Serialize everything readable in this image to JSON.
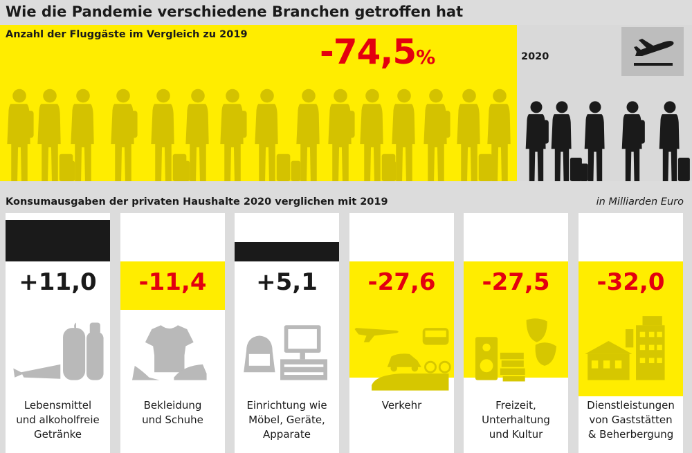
{
  "title": "Wie die Pandemie verschiedene Branchen getroffen hat",
  "passengers": {
    "subtitle": "Anzahl der Fluggäste im Vergleich zu 2019",
    "change_number": "-74,5",
    "change_unit": "%",
    "change_value": -74.5,
    "year": "2020",
    "icon": "airplane-departure-icon"
  },
  "spending": {
    "subtitle": "Konsumausgaben der privaten Haushalte 2020 verglichen mit 2019",
    "unit": "in Milliarden Euro"
  },
  "colors": {
    "yellow": "#ffed00",
    "red": "#e3000f",
    "black": "#1a1a1a",
    "grey": "#dcdcdc",
    "icon_grey": "#b9b9b9",
    "icon_on_yellow": "#d6c700"
  },
  "chart_data": {
    "type": "bar",
    "title": "Konsumausgaben der privaten Haushalte 2020 verglichen mit 2019",
    "ylabel": "in Milliarden Euro",
    "ylim": [
      -35,
      15
    ],
    "categories": [
      "Lebensmittel und alkoholfreie Getränke",
      "Bekleidung und Schuhe",
      "Einrichtung wie Möbel, Geräte, Apparate",
      "Verkehr",
      "Freizeit, Unterhaltung und Kultur",
      "Dienstleistungen von Gaststätten & Beherbergung"
    ],
    "values": [
      11.0,
      -11.4,
      5.1,
      -27.6,
      -27.5,
      -32.0
    ],
    "value_labels": [
      "+11,0",
      "-11,4",
      "+5,1",
      "-27,6",
      "-27,5",
      "-32,0"
    ],
    "label_lines": [
      [
        "Lebensmittel",
        "und alkoholfreie",
        "Getränke"
      ],
      [
        "Bekleidung",
        "und Schuhe"
      ],
      [
        "Einrichtung wie",
        "Möbel, Geräte,",
        "Apparate"
      ],
      [
        "Verkehr"
      ],
      [
        "Freizeit,",
        "Unterhaltung",
        "und Kultur"
      ],
      [
        "Dienstleistungen",
        "von Gaststätten",
        "& Beherbergung"
      ]
    ],
    "icons": [
      "groceries-icon",
      "clothing-shoes-icon",
      "furniture-appliances-icon",
      "transport-icon",
      "leisure-culture-icon",
      "restaurant-hotel-icon"
    ]
  }
}
